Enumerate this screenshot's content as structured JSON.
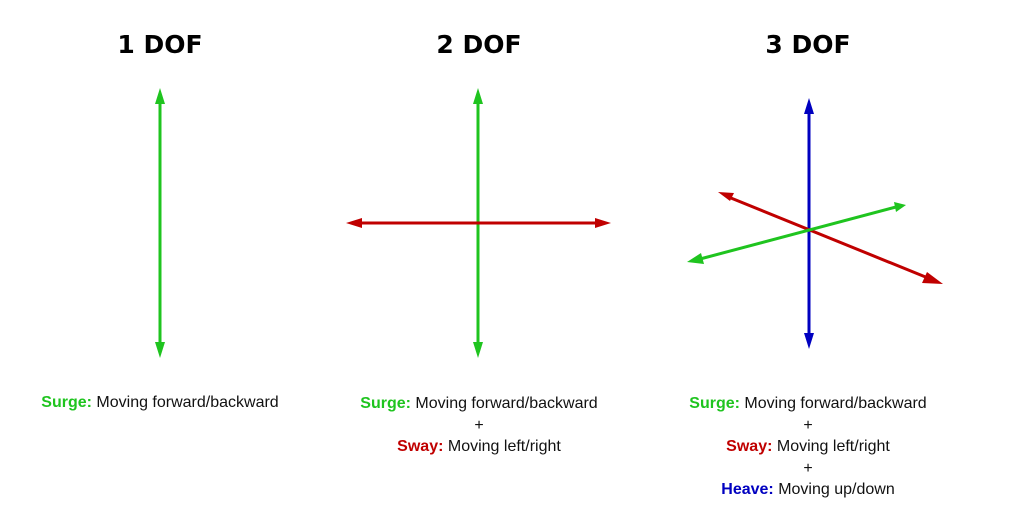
{
  "colors": {
    "surge": "#1fc41f",
    "sway": "#c00000",
    "heave": "#0000c0",
    "text": "#111111"
  },
  "panels": [
    {
      "title": "1 DOF",
      "lines": [
        {
          "term": "Surge:",
          "desc": "Moving forward/backward",
          "color_key": "surge"
        }
      ]
    },
    {
      "title": "2 DOF",
      "lines": [
        {
          "term": "Surge:",
          "desc": "Moving forward/backward",
          "color_key": "surge"
        },
        {
          "term": "Sway:",
          "desc": "Moving left/right",
          "color_key": "sway"
        }
      ]
    },
    {
      "title": "3 DOF",
      "lines": [
        {
          "term": "Surge:",
          "desc": "Moving forward/backward",
          "color_key": "surge"
        },
        {
          "term": "Sway:",
          "desc": "Moving left/right",
          "color_key": "sway"
        },
        {
          "term": "Heave:",
          "desc": "Moving up/down",
          "color_key": "heave"
        }
      ]
    }
  ],
  "separator": "+"
}
